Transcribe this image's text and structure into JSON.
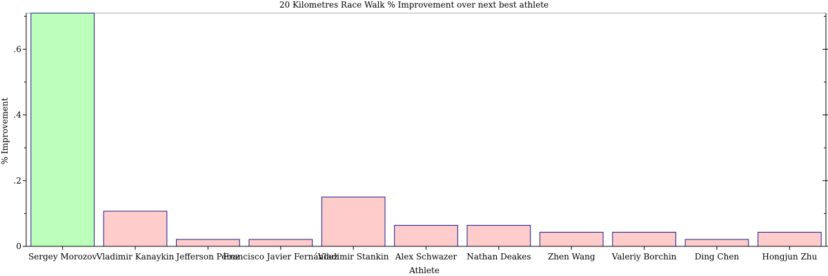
{
  "chart_data": {
    "type": "bar",
    "title": "20 Kilometres Race Walk % Improvement over next best athlete",
    "xlabel": "Athlete",
    "ylabel": "% Improvement",
    "ylim": [
      0,
      0.71
    ],
    "y_ticks": [
      {
        "value": 0,
        "label": "0"
      },
      {
        "value": 0.2,
        "label": ".2"
      },
      {
        "value": 0.4,
        "label": ".4"
      },
      {
        "value": 0.6,
        "label": ".6"
      }
    ],
    "categories": [
      "Sergey Morozov",
      "Vladimir Kanaykin",
      "Jefferson Pérez",
      "Francisco Javier Fernández",
      "Vladimir Stankin",
      "Alex Schwazer",
      "Nathan Deakes",
      "Zhen Wang",
      "Valeriy Borchin",
      "Ding Chen",
      "Hongjun Zhu"
    ],
    "values": [
      0.71,
      0.107,
      0.021,
      0.021,
      0.15,
      0.064,
      0.064,
      0.043,
      0.043,
      0.021,
      0.043
    ],
    "highlight_index": 0,
    "colors": {
      "highlight_fill": "#bbffbb",
      "bar_fill": "#ffcccc",
      "bar_stroke": "#1a1a8c",
      "axis": "#000000"
    },
    "grid": false,
    "legend": "none"
  }
}
